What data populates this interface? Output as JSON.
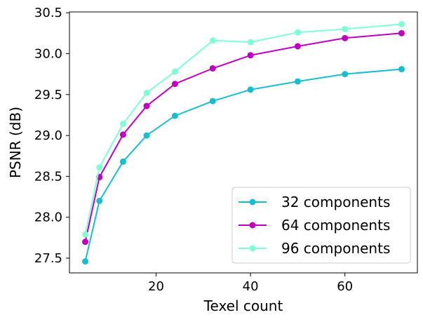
{
  "chart_data": {
    "type": "line",
    "xlabel": "Texel count",
    "ylabel": "PSNR (dB)",
    "xlim": [
      1.65,
      75.35
    ],
    "ylim": [
      27.32,
      30.51
    ],
    "xticks": [
      20,
      40,
      60
    ],
    "yticks": [
      27.5,
      28.0,
      28.5,
      29.0,
      29.5,
      30.0,
      30.5
    ],
    "ytick_labels": [
      "27.5",
      "28.0",
      "28.5",
      "29.0",
      "29.5",
      "30.0",
      "30.5"
    ],
    "grid": false,
    "legend_position": "lower-right",
    "x": [
      5,
      8,
      13,
      18,
      24,
      32,
      40,
      50,
      60,
      72
    ],
    "series": [
      {
        "name": "32 components",
        "color": "#17becf",
        "values": [
          27.46,
          28.2,
          28.68,
          29.0,
          29.24,
          29.42,
          29.56,
          29.66,
          29.75,
          29.81
        ]
      },
      {
        "name": "64 components",
        "color": "#c000c0",
        "values": [
          27.7,
          28.49,
          29.01,
          29.36,
          29.63,
          29.82,
          29.98,
          30.09,
          30.19,
          30.25
        ]
      },
      {
        "name": "96 components",
        "color": "#7fffd4",
        "values": [
          27.79,
          28.61,
          29.14,
          29.52,
          29.78,
          30.16,
          30.14,
          30.26,
          30.3,
          30.36
        ]
      }
    ]
  }
}
